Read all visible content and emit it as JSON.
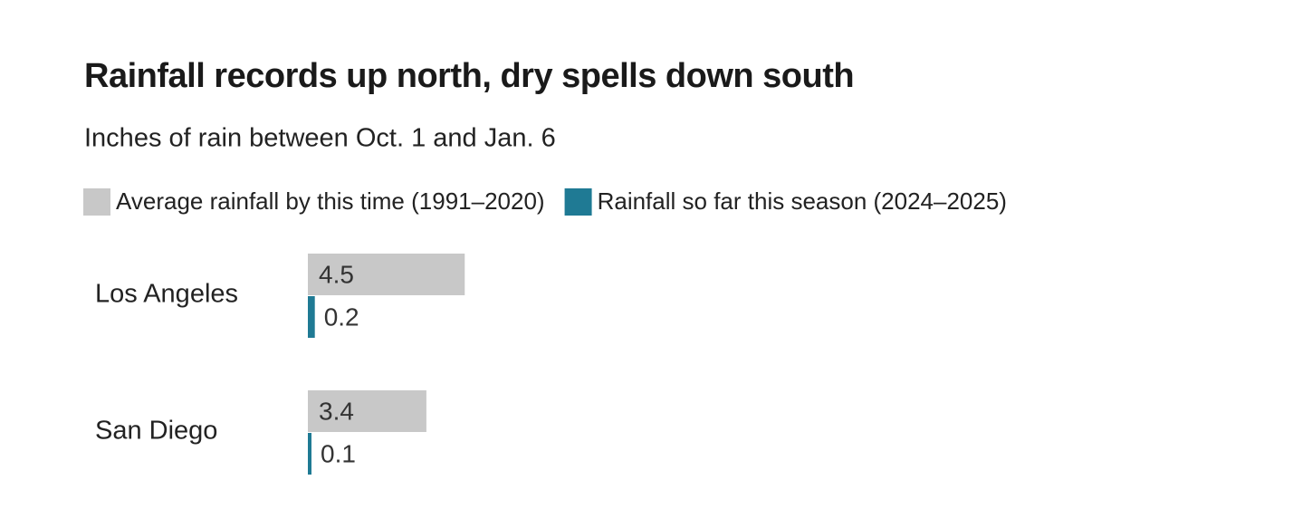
{
  "chart_data": {
    "type": "bar",
    "orientation": "horizontal",
    "title": "Rainfall records up north, dry spells down south",
    "subtitle": "Inches of rain between Oct. 1 and Jan. 6",
    "categories": [
      "Los Angeles",
      "San Diego"
    ],
    "series": [
      {
        "name": "Average rainfall by this time (1991–2020)",
        "color": "#c8c8c8",
        "values": [
          4.5,
          3.4
        ]
      },
      {
        "name": "Rainfall so far this season (2024–2025)",
        "color": "#1f7a94",
        "values": [
          0.2,
          0.1
        ]
      }
    ]
  }
}
